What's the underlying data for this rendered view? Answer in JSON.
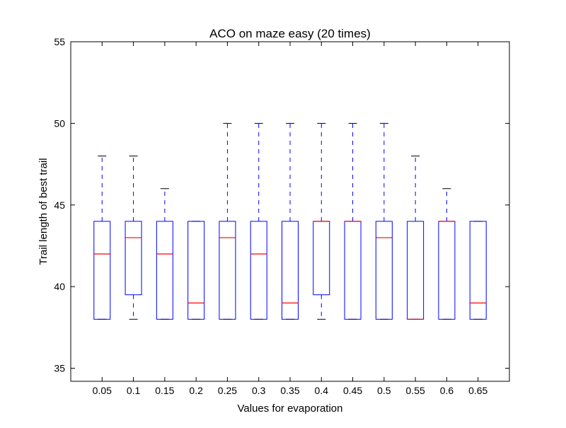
{
  "chart_data": {
    "type": "box",
    "title": "ACO on maze easy (20 times)",
    "xlabel": "Values for evaporation",
    "ylabel": "Trail length of best trail",
    "ylim": [
      34.2,
      55
    ],
    "yticks": [
      35,
      40,
      45,
      50,
      55
    ],
    "grid": false,
    "categories": [
      "0.05",
      "0.1",
      "0.15",
      "0.2",
      "0.25",
      "0.3",
      "0.35",
      "0.4",
      "0.45",
      "0.5",
      "0.55",
      "0.6",
      "0.65"
    ],
    "boxes": [
      {
        "whisker_low": 38,
        "q1": 38,
        "median": 42,
        "q3": 44,
        "whisker_high": 48
      },
      {
        "whisker_low": 38,
        "q1": 39.5,
        "median": 43,
        "q3": 44,
        "whisker_high": 48
      },
      {
        "whisker_low": 38,
        "q1": 38,
        "median": 42,
        "q3": 44,
        "whisker_high": 46
      },
      {
        "whisker_low": 38,
        "q1": 38,
        "median": 39,
        "q3": 44,
        "whisker_high": 44
      },
      {
        "whisker_low": 38,
        "q1": 38,
        "median": 43,
        "q3": 44,
        "whisker_high": 50
      },
      {
        "whisker_low": 38,
        "q1": 38,
        "median": 42,
        "q3": 44,
        "whisker_high": 50
      },
      {
        "whisker_low": 38,
        "q1": 38,
        "median": 39,
        "q3": 44,
        "whisker_high": 50
      },
      {
        "whisker_low": 38,
        "q1": 39.5,
        "median": 44,
        "q3": 44,
        "whisker_high": 50
      },
      {
        "whisker_low": 38,
        "q1": 38,
        "median": 44,
        "q3": 44,
        "whisker_high": 50
      },
      {
        "whisker_low": 38,
        "q1": 38,
        "median": 43,
        "q3": 44,
        "whisker_high": 50
      },
      {
        "whisker_low": 38,
        "q1": 38,
        "median": 38,
        "q3": 44,
        "whisker_high": 48
      },
      {
        "whisker_low": 38,
        "q1": 38,
        "median": 44,
        "q3": 44,
        "whisker_high": 46
      },
      {
        "whisker_low": 38,
        "q1": 38,
        "median": 39,
        "q3": 44,
        "whisker_high": 44
      }
    ],
    "colors": {
      "box": "#0000ff",
      "median": "#ff0000",
      "cap": "#000000",
      "frame": "#000000"
    }
  }
}
